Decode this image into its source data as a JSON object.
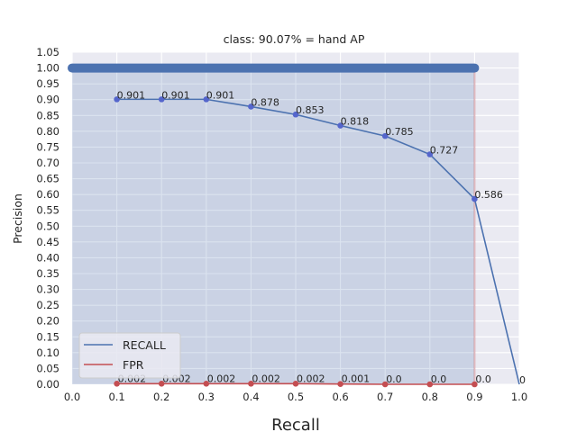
{
  "chart_data": {
    "type": "line",
    "title": "class: 90.07% = hand AP",
    "xlabel": "Recall",
    "ylabel": "Precision",
    "xlim": [
      0.0,
      1.0
    ],
    "ylim": [
      0.0,
      1.05
    ],
    "grid": true,
    "legend_position": "lower-left",
    "x_ticks": [
      "0.0",
      "0.1",
      "0.2",
      "0.3",
      "0.4",
      "0.5",
      "0.6",
      "0.7",
      "0.8",
      "0.9",
      "1.0"
    ],
    "y_ticks": [
      "0.00",
      "0.05",
      "0.10",
      "0.15",
      "0.20",
      "0.25",
      "0.30",
      "0.35",
      "0.40",
      "0.45",
      "0.50",
      "0.55",
      "0.60",
      "0.65",
      "0.70",
      "0.75",
      "0.80",
      "0.85",
      "0.90",
      "0.95",
      "1.00",
      "1.05"
    ],
    "series": [
      {
        "name": "RECALL",
        "color": "#4c72b0",
        "x": [
          0.1,
          0.2,
          0.3,
          0.4,
          0.5,
          0.6,
          0.7,
          0.8,
          0.9,
          1.0
        ],
        "values": [
          0.901,
          0.901,
          0.901,
          0.878,
          0.853,
          0.818,
          0.785,
          0.727,
          0.586,
          0.0
        ],
        "labels": [
          "0.901",
          "0.901",
          "0.901",
          "0.878",
          "0.853",
          "0.818",
          "0.785",
          "0.727",
          "0.586",
          "0"
        ]
      },
      {
        "name": "FPR",
        "color": "#c44e52",
        "x": [
          0.1,
          0.2,
          0.3,
          0.4,
          0.5,
          0.6,
          0.7,
          0.8,
          0.9
        ],
        "values": [
          0.002,
          0.002,
          0.002,
          0.002,
          0.002,
          0.001,
          0.0,
          0.0,
          0.0
        ],
        "labels": [
          "0.002",
          "0.002",
          "0.002",
          "0.002",
          "0.002",
          "0.001",
          "0.0",
          "0.0",
          "0.0"
        ]
      }
    ],
    "interpolated_precision": {
      "x_range": [
        0.0,
        0.9
      ],
      "value": 1.0,
      "fill_color": "#4c72b0"
    }
  }
}
